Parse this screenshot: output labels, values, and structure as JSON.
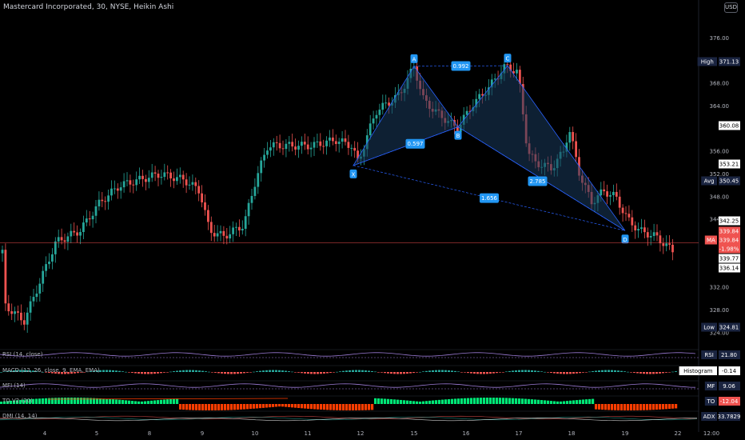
{
  "header": {
    "title": "Mastercard Incorporated, 30, NYSE, Heikin Ashi",
    "currency": "USD"
  },
  "colors": {
    "background": "#000000",
    "up": "#26a69a",
    "down": "#ef5350",
    "pattern_fill": "#1a3a5c",
    "pattern_line": "#2962ff",
    "label_bg": "#2196f3",
    "ma_line": "#ff5252",
    "osc_line": "#9c7bd6",
    "osc_green": "#00e676",
    "osc_red": "#ff3d00"
  },
  "chart_data": {
    "type": "candlestick",
    "x_ticks": [
      "4",
      "5",
      "8",
      "9",
      "10",
      "11",
      "12",
      "15",
      "16",
      "17",
      "18",
      "19",
      "22",
      "12:00"
    ],
    "y_ticks": [
      376.0,
      368.0,
      364.0,
      356.0,
      352.0,
      348.0,
      344.0,
      332.0,
      328.0,
      324.0
    ],
    "ylim": [
      322,
      381
    ],
    "price_tags": {
      "high": {
        "label": "High",
        "value": "371.13"
      },
      "p360": {
        "value": "360.08"
      },
      "p353": {
        "value": "353.21"
      },
      "avg": {
        "label": "Avg",
        "value": "350.45"
      },
      "p342": {
        "value": "342.25"
      },
      "p33984a": {
        "value": "339.84"
      },
      "ma": {
        "label": "MA",
        "value": "339.84"
      },
      "chg": {
        "value": "-1.98%"
      },
      "p339": {
        "value": "339.77"
      },
      "p336": {
        "value": "336.14"
      },
      "low": {
        "label": "Low",
        "value": "324.81"
      }
    },
    "pattern": {
      "points": [
        {
          "name": "X",
          "value": 353.5
        },
        {
          "name": "A",
          "value": 371.0
        },
        {
          "name": "B",
          "value": 360.3
        },
        {
          "name": "C",
          "value": 371.1
        },
        {
          "name": "D",
          "value": 342.0
        }
      ],
      "ratios": [
        "0.992",
        "0.597",
        "2.785",
        "1.656"
      ]
    },
    "indicators": [
      {
        "name": "RSI (14, close)",
        "tag": "RSI",
        "value": "21.80"
      },
      {
        "name": "MACD (12, 26, close, 9, EMA, EMA)",
        "tag": "Histogram",
        "value": "-0.14"
      },
      {
        "name": "MFI (14)",
        "tag": "MF",
        "value": "9.06"
      },
      {
        "name": "TO V2 (20)",
        "tag": "TO",
        "value": "-12.04"
      },
      {
        "name": "DMI (14, 14)",
        "tag": "ADX",
        "value": "33.7829"
      }
    ]
  }
}
